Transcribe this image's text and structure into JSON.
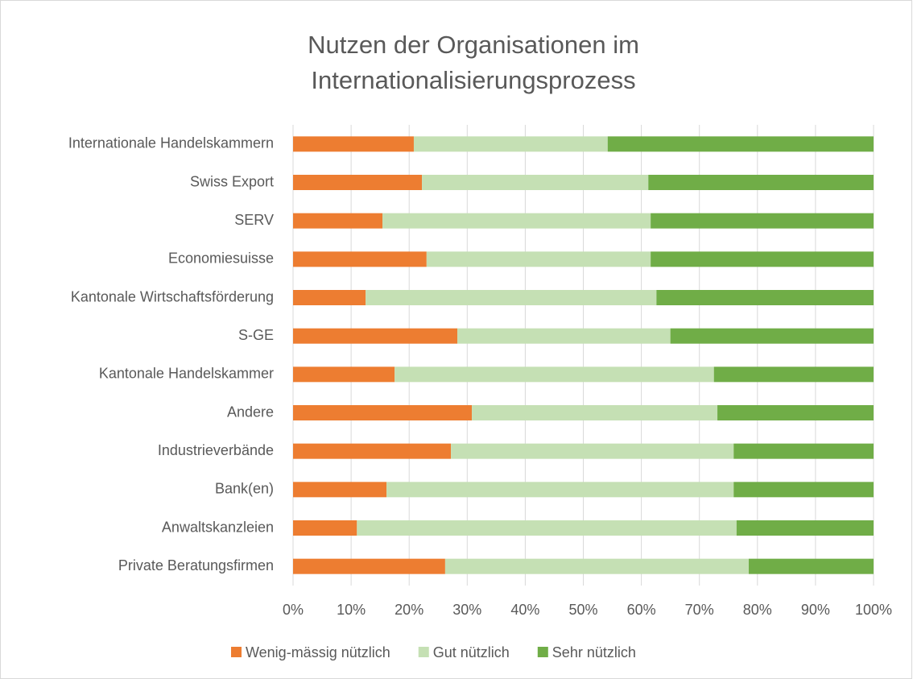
{
  "chart_data": {
    "type": "bar",
    "orientation": "horizontal",
    "stacked": true,
    "title": [
      "Nutzen der Organisationen im",
      "Internationalisierungsprozess"
    ],
    "categories": [
      "Internationale Handelskammern",
      "Swiss Export",
      "SERV",
      "Economiesuisse",
      "Kantonale Wirtschaftsförderung",
      "S-GE",
      "Kantonale Handelskammer",
      "Andere",
      "Industrieverbände",
      "Bank(en)",
      "Anwaltskanzleien",
      "Private Beratungsfirmen"
    ],
    "series": [
      {
        "name": "Wenig-mässig nützlich",
        "color": "#ed7d31",
        "values": [
          20.8,
          22.2,
          15.4,
          23.0,
          12.5,
          28.3,
          17.5,
          30.8,
          27.2,
          16.1,
          11.0,
          26.2
        ]
      },
      {
        "name": "Gut nützlich",
        "color": "#c5e0b4",
        "values": [
          33.4,
          39.0,
          46.2,
          38.6,
          50.1,
          36.7,
          55.0,
          42.3,
          48.7,
          59.8,
          65.4,
          52.3
        ]
      },
      {
        "name": "Sehr nützlich",
        "color": "#70ad47",
        "values": [
          45.8,
          38.8,
          38.4,
          38.4,
          37.4,
          35.0,
          27.5,
          26.9,
          24.1,
          24.1,
          23.6,
          21.5
        ]
      }
    ],
    "xlim": [
      0,
      100
    ],
    "xticks": [
      {
        "value": 0,
        "label": "0%"
      },
      {
        "value": 10,
        "label": "10%"
      },
      {
        "value": 20,
        "label": "20%"
      },
      {
        "value": 30,
        "label": "30%"
      },
      {
        "value": 40,
        "label": "40%"
      },
      {
        "value": 50,
        "label": "50%"
      },
      {
        "value": 60,
        "label": "60%"
      },
      {
        "value": 70,
        "label": "70%"
      },
      {
        "value": 80,
        "label": "80%"
      },
      {
        "value": 90,
        "label": "90%"
      },
      {
        "value": 100,
        "label": "100%"
      }
    ],
    "grid": true,
    "legend": "bottom"
  }
}
